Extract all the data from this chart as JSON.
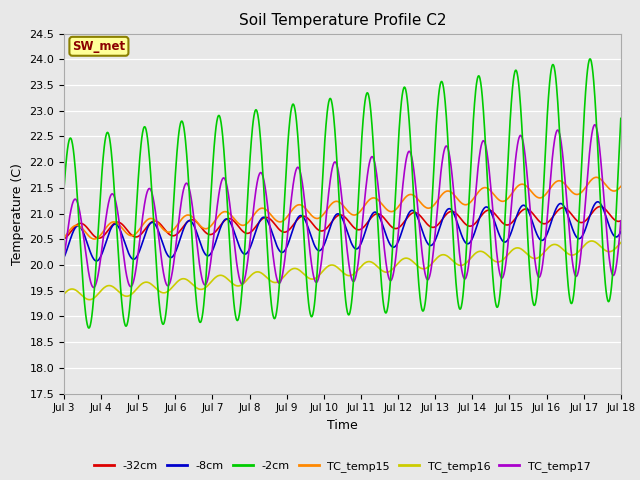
{
  "title": "Soil Temperature Profile C2",
  "xlabel": "Time",
  "ylabel": "Temperature (C)",
  "ylim": [
    17.5,
    24.5
  ],
  "background_color": "#e8e8e8",
  "annotation_text": "SW_met",
  "annotation_bg": "#ffff99",
  "annotation_border": "#8B8000",
  "annotation_text_color": "#8B0000",
  "series": {
    "-32cm": {
      "color": "#dd0000",
      "lw": 1.2
    },
    "-8cm": {
      "color": "#0000cc",
      "lw": 1.2
    },
    "-2cm": {
      "color": "#00cc00",
      "lw": 1.2
    },
    "TC_temp15": {
      "color": "#ff8800",
      "lw": 1.2
    },
    "TC_temp16": {
      "color": "#cccc00",
      "lw": 1.2
    },
    "TC_temp17": {
      "color": "#aa00cc",
      "lw": 1.2
    }
  },
  "xtick_labels": [
    "Jul 3",
    "Jul 4",
    "Jul 5",
    "Jul 6",
    "Jul 7",
    "Jul 8",
    "Jul 9",
    "Jul 10",
    "Jul 11",
    "Jul 12",
    "Jul 13",
    "Jul 14",
    "Jul 15",
    "Jul 16",
    "Jul 17",
    "Jul 18"
  ],
  "ytick_values": [
    17.5,
    18.0,
    18.5,
    19.0,
    19.5,
    20.0,
    20.5,
    21.0,
    21.5,
    22.0,
    22.5,
    23.0,
    23.5,
    24.0,
    24.5
  ]
}
